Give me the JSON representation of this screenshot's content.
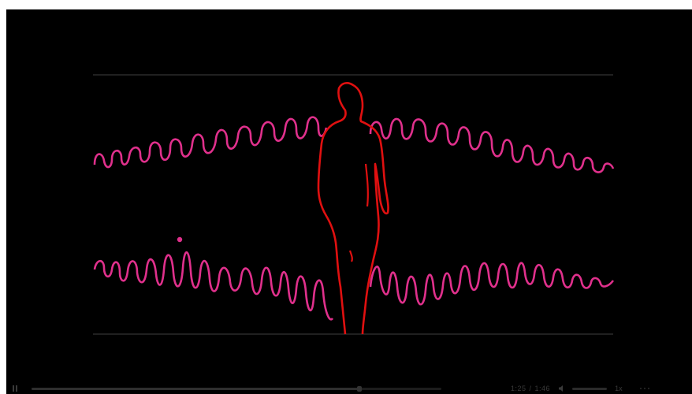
{
  "player": {
    "background": "#000000",
    "accent_pink": "#e0308c",
    "accent_red": "#e01010",
    "frame_description_icons": [
      "pause-icon",
      "volume-icon",
      "more-icon"
    ],
    "controls": {
      "play_state": "paused",
      "progress": 0.8,
      "elapsed": "1:25",
      "duration": "1:46",
      "volume": 1.0,
      "speed": "1x"
    }
  }
}
